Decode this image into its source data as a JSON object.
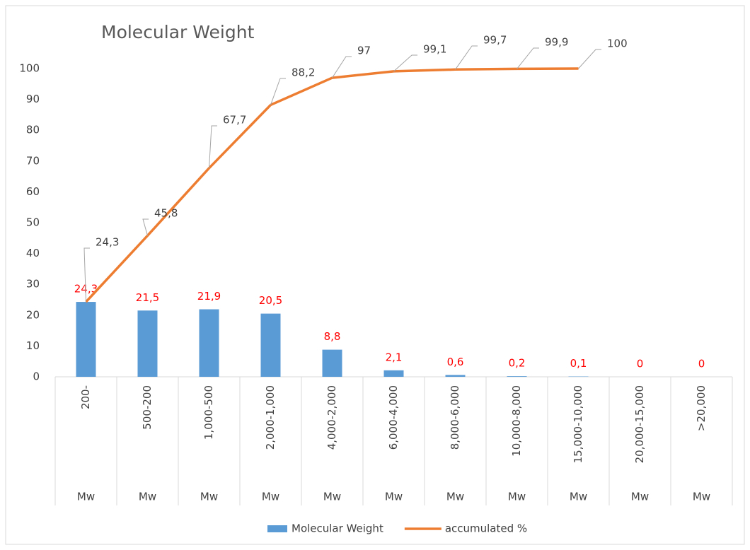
{
  "chart_data": {
    "type": "bar",
    "title": "Molecular Weight",
    "categories": [
      "200-",
      "500-200",
      "1,000-500",
      "2,000-1,000",
      "4,000-2,000",
      "6,000-4,000",
      "8,000-6,000",
      "10,000-8,000",
      "15,000-10,000",
      "20,000-15,000",
      ">20,000"
    ],
    "group_labels": [
      "Mw",
      "Mw",
      "Mw",
      "Mw",
      "Mw",
      "Mw",
      "Mw",
      "Mw",
      "Mw",
      "Mw",
      "Mw"
    ],
    "series": [
      {
        "name": "Molecular Weight",
        "type": "bar",
        "color": "#5b9bd5",
        "label_color": "#ff0000",
        "values": [
          24.3,
          21.5,
          21.9,
          20.5,
          8.8,
          2.1,
          0.6,
          0.2,
          0.1,
          0,
          0
        ],
        "value_labels": [
          "24,3",
          "21,5",
          "21,9",
          "20,5",
          "8,8",
          "2,1",
          "0,6",
          "0,2",
          "0,1",
          "0",
          "0"
        ]
      },
      {
        "name": "accumulated %",
        "type": "line",
        "color": "#ed7d31",
        "label_color": "#404040",
        "values": [
          24.3,
          45.8,
          67.7,
          88.2,
          97,
          99.1,
          99.7,
          99.9,
          100,
          null,
          null
        ],
        "value_labels": [
          "24,3",
          "45,8",
          "67,7",
          "88,2",
          "97",
          "99,1",
          "99,7",
          "99,9",
          "100",
          null,
          null
        ]
      }
    ],
    "ylim": [
      0,
      100
    ],
    "yticks": [
      0,
      10,
      20,
      30,
      40,
      50,
      60,
      70,
      80,
      90,
      100
    ],
    "grid": false,
    "legend": "bottom"
  }
}
